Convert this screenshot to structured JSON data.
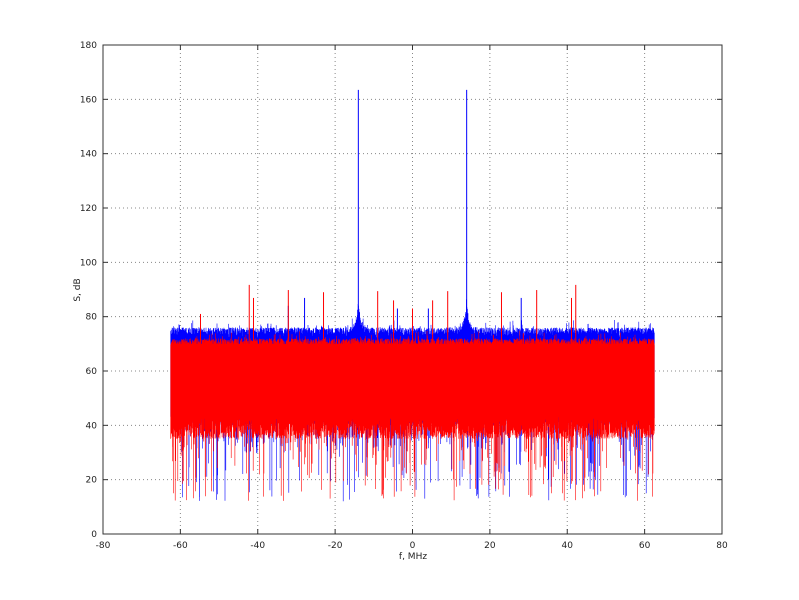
{
  "chart_data": {
    "type": "line",
    "title": "",
    "xlabel": "f, MHz",
    "ylabel": "S, dB",
    "xlim": [
      -80,
      80
    ],
    "ylim": [
      0,
      180
    ],
    "xticks": [
      "-80",
      "-60",
      "-40",
      "-20",
      "0",
      "20",
      "40",
      "60",
      "80"
    ],
    "yticks": [
      "0",
      "20",
      "40",
      "60",
      "80",
      "100",
      "120",
      "140",
      "160",
      "180"
    ],
    "grid": true,
    "legend": "none",
    "frequency_range": [
      -62.5,
      62.5
    ],
    "series": [
      {
        "color": "#0000ff",
        "noise_band": {
          "floor_top": [
            72,
            76
          ],
          "floor_bottom": [
            40,
            45
          ],
          "min_dip": 12
        },
        "spikes": [
          {
            "f": -14,
            "db": 163.5
          },
          {
            "f": 14,
            "db": 163.5
          },
          {
            "f": -27.9,
            "db": 86.9
          },
          {
            "f": 28.1,
            "db": 86.9
          },
          {
            "f": -32.1,
            "db": 84
          },
          {
            "f": -3.9,
            "db": 83
          },
          {
            "f": 4.1,
            "db": 83
          }
        ],
        "humps": [
          {
            "f": -14,
            "db": 84
          },
          {
            "f": 14,
            "db": 84
          }
        ]
      },
      {
        "color": "#ff0000",
        "noise_band": {
          "floor_top": [
            68,
            72
          ],
          "floor_bottom": [
            35,
            45
          ],
          "min_dip": 12
        },
        "spikes": [
          {
            "f": -54.8,
            "db": 81
          },
          {
            "f": -42.2,
            "db": 91.7
          },
          {
            "f": -41.1,
            "db": 86.9
          },
          {
            "f": -32.1,
            "db": 89.8
          },
          {
            "f": -23.0,
            "db": 89
          },
          {
            "f": -9.0,
            "db": 89.4
          },
          {
            "f": -4.9,
            "db": 86
          },
          {
            "f": 0,
            "db": 83
          },
          {
            "f": 5.2,
            "db": 86
          },
          {
            "f": 9.1,
            "db": 89.4
          },
          {
            "f": 23.0,
            "db": 89
          },
          {
            "f": 32.1,
            "db": 89.8
          },
          {
            "f": 41.1,
            "db": 86.9
          },
          {
            "f": 42.2,
            "db": 91.7
          }
        ]
      }
    ]
  }
}
